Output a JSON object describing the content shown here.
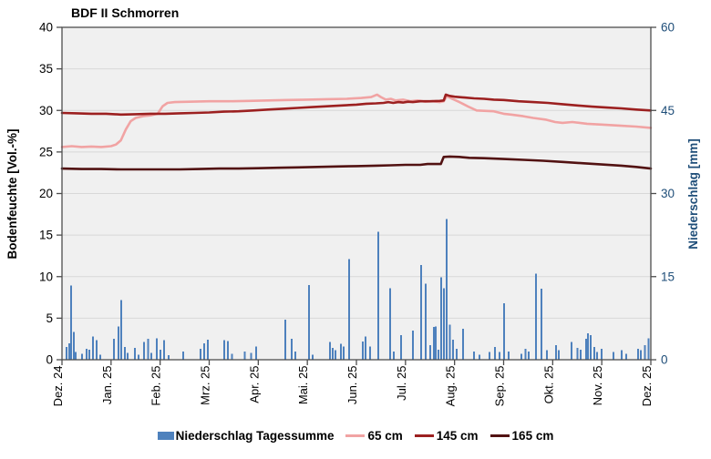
{
  "title": "BDF II Schmorren",
  "chart_data": {
    "type": "bar+line combo",
    "title": "BDF II Schmorren",
    "background": "#f0f0f0",
    "gridline_color": "#d8d8d8",
    "frame_color": "#4d4d4d",
    "legend_position": "bottom",
    "y_left": {
      "label": "Bodenfeuchte [Vol.-%]",
      "min": 0,
      "max": 40,
      "ticks": [
        0,
        5,
        10,
        15,
        20,
        25,
        30,
        35,
        40
      ],
      "color": "#000000"
    },
    "y_right": {
      "label": "Niederschlag [mm]",
      "min": 0,
      "max": 60,
      "ticks": [
        0,
        15,
        30,
        45,
        60
      ],
      "color": "#1f4e79"
    },
    "x": {
      "unit": "months from Dez. 24",
      "min": 0,
      "max": 12,
      "tick_labels": [
        "Dez. 24",
        "Jan. 25",
        "Feb. 25",
        "Mrz. 25",
        "Apr. 25",
        "Mai. 25",
        "Jun. 25",
        "Jul. 25",
        "Aug. 25",
        "Sep. 25",
        "Okt. 25",
        "Nov. 25",
        "Dez. 25"
      ]
    },
    "series": [
      {
        "name": "Niederschlag Tagessumme",
        "type": "bar",
        "axis": "right",
        "color": "#4e81bd",
        "points": [
          [
            0.09,
            2.3
          ],
          [
            0.15,
            3.0
          ],
          [
            0.19,
            13.4
          ],
          [
            0.24,
            5.0
          ],
          [
            0.28,
            1.4
          ],
          [
            0.41,
            1.1
          ],
          [
            0.5,
            2.0
          ],
          [
            0.56,
            1.8
          ],
          [
            0.63,
            4.2
          ],
          [
            0.71,
            3.5
          ],
          [
            0.78,
            0.9
          ],
          [
            1.06,
            3.8
          ],
          [
            1.15,
            6.0
          ],
          [
            1.21,
            10.8
          ],
          [
            1.28,
            2.3
          ],
          [
            1.34,
            1.2
          ],
          [
            1.49,
            2.1
          ],
          [
            1.56,
            0.9
          ],
          [
            1.67,
            3.2
          ],
          [
            1.76,
            3.8
          ],
          [
            1.82,
            1.2
          ],
          [
            1.93,
            3.9
          ],
          [
            2.01,
            1.8
          ],
          [
            2.08,
            3.5
          ],
          [
            2.17,
            0.8
          ],
          [
            2.47,
            1.5
          ],
          [
            2.82,
            2.0
          ],
          [
            2.9,
            3.0
          ],
          [
            2.97,
            3.6
          ],
          [
            3.31,
            3.5
          ],
          [
            3.38,
            3.4
          ],
          [
            3.46,
            1.1
          ],
          [
            3.72,
            1.5
          ],
          [
            3.85,
            1.2
          ],
          [
            3.96,
            2.4
          ],
          [
            4.55,
            7.2
          ],
          [
            4.68,
            3.8
          ],
          [
            4.76,
            1.5
          ],
          [
            5.03,
            13.5
          ],
          [
            5.11,
            0.9
          ],
          [
            5.46,
            3.2
          ],
          [
            5.52,
            2.1
          ],
          [
            5.57,
            1.7
          ],
          [
            5.68,
            2.9
          ],
          [
            5.74,
            2.4
          ],
          [
            5.85,
            18.2
          ],
          [
            6.13,
            3.3
          ],
          [
            6.19,
            4.2
          ],
          [
            6.28,
            2.4
          ],
          [
            6.45,
            23.1
          ],
          [
            6.69,
            12.9
          ],
          [
            6.76,
            1.5
          ],
          [
            6.91,
            4.4
          ],
          [
            7.15,
            5.3
          ],
          [
            7.32,
            17.1
          ],
          [
            7.41,
            13.7
          ],
          [
            7.5,
            2.6
          ],
          [
            7.58,
            5.9
          ],
          [
            7.62,
            6.0
          ],
          [
            7.67,
            1.8
          ],
          [
            7.73,
            14.9
          ],
          [
            7.78,
            12.9
          ],
          [
            7.84,
            25.4
          ],
          [
            7.9,
            6.3
          ],
          [
            7.97,
            3.6
          ],
          [
            8.04,
            2.0
          ],
          [
            8.17,
            5.6
          ],
          [
            8.4,
            1.5
          ],
          [
            8.51,
            0.9
          ],
          [
            8.71,
            1.4
          ],
          [
            8.82,
            2.3
          ],
          [
            8.92,
            1.4
          ],
          [
            9.01,
            10.2
          ],
          [
            9.1,
            1.5
          ],
          [
            9.36,
            1.1
          ],
          [
            9.45,
            2.0
          ],
          [
            9.51,
            1.5
          ],
          [
            9.66,
            15.5
          ],
          [
            9.77,
            12.8
          ],
          [
            9.88,
            1.7
          ],
          [
            10.07,
            2.6
          ],
          [
            10.12,
            1.7
          ],
          [
            10.38,
            3.2
          ],
          [
            10.5,
            2.1
          ],
          [
            10.57,
            1.8
          ],
          [
            10.68,
            3.8
          ],
          [
            10.72,
            4.8
          ],
          [
            10.77,
            4.4
          ],
          [
            10.85,
            2.3
          ],
          [
            10.9,
            1.4
          ],
          [
            11.0,
            2.0
          ],
          [
            11.24,
            1.4
          ],
          [
            11.41,
            1.7
          ],
          [
            11.5,
            1.1
          ],
          [
            11.74,
            2.0
          ],
          [
            11.8,
            1.7
          ],
          [
            11.88,
            2.6
          ],
          [
            11.95,
            3.9
          ]
        ]
      },
      {
        "name": "65 cm",
        "type": "line",
        "axis": "left",
        "color": "#f1a3a3",
        "points": [
          [
            0,
            25.6
          ],
          [
            0.2,
            25.7
          ],
          [
            0.4,
            25.6
          ],
          [
            0.6,
            25.65
          ],
          [
            0.8,
            25.6
          ],
          [
            1.0,
            25.7
          ],
          [
            1.1,
            25.9
          ],
          [
            1.2,
            26.4
          ],
          [
            1.3,
            27.7
          ],
          [
            1.4,
            28.7
          ],
          [
            1.5,
            29.1
          ],
          [
            1.65,
            29.3
          ],
          [
            1.8,
            29.4
          ],
          [
            1.95,
            29.6
          ],
          [
            2.05,
            30.5
          ],
          [
            2.15,
            30.9
          ],
          [
            2.3,
            31.0
          ],
          [
            2.6,
            31.05
          ],
          [
            3.0,
            31.1
          ],
          [
            3.4,
            31.1
          ],
          [
            3.8,
            31.15
          ],
          [
            4.2,
            31.2
          ],
          [
            4.6,
            31.25
          ],
          [
            5.0,
            31.3
          ],
          [
            5.4,
            31.35
          ],
          [
            5.8,
            31.4
          ],
          [
            6.1,
            31.5
          ],
          [
            6.3,
            31.6
          ],
          [
            6.42,
            31.9
          ],
          [
            6.5,
            31.6
          ],
          [
            6.6,
            31.3
          ],
          [
            6.7,
            31.4
          ],
          [
            6.8,
            31.2
          ],
          [
            6.95,
            31.3
          ],
          [
            7.1,
            31.1
          ],
          [
            7.25,
            31.2
          ],
          [
            7.4,
            31.05
          ],
          [
            7.55,
            31.1
          ],
          [
            7.7,
            31.0
          ],
          [
            7.78,
            31.1
          ],
          [
            7.84,
            31.7
          ],
          [
            7.95,
            31.4
          ],
          [
            8.1,
            31.0
          ],
          [
            8.3,
            30.4
          ],
          [
            8.45,
            30.0
          ],
          [
            8.6,
            29.95
          ],
          [
            8.8,
            29.9
          ],
          [
            9.0,
            29.6
          ],
          [
            9.15,
            29.5
          ],
          [
            9.4,
            29.3
          ],
          [
            9.6,
            29.1
          ],
          [
            9.85,
            28.9
          ],
          [
            10.05,
            28.6
          ],
          [
            10.2,
            28.5
          ],
          [
            10.4,
            28.6
          ],
          [
            10.7,
            28.4
          ],
          [
            11.0,
            28.3
          ],
          [
            11.4,
            28.15
          ],
          [
            11.7,
            28.05
          ],
          [
            12.0,
            27.9
          ]
        ]
      },
      {
        "name": "145 cm",
        "type": "line",
        "axis": "left",
        "color": "#9c2020",
        "points": [
          [
            0,
            29.7
          ],
          [
            0.3,
            29.65
          ],
          [
            0.6,
            29.6
          ],
          [
            0.9,
            29.6
          ],
          [
            1.2,
            29.5
          ],
          [
            1.5,
            29.55
          ],
          [
            1.8,
            29.6
          ],
          [
            2.1,
            29.6
          ],
          [
            2.4,
            29.65
          ],
          [
            2.7,
            29.7
          ],
          [
            3.0,
            29.75
          ],
          [
            3.3,
            29.85
          ],
          [
            3.6,
            29.9
          ],
          [
            3.9,
            30.0
          ],
          [
            4.2,
            30.1
          ],
          [
            4.5,
            30.2
          ],
          [
            4.8,
            30.3
          ],
          [
            5.1,
            30.4
          ],
          [
            5.4,
            30.5
          ],
          [
            5.7,
            30.6
          ],
          [
            6.0,
            30.7
          ],
          [
            6.2,
            30.8
          ],
          [
            6.4,
            30.85
          ],
          [
            6.55,
            30.9
          ],
          [
            6.65,
            31.0
          ],
          [
            6.75,
            30.9
          ],
          [
            6.85,
            31.0
          ],
          [
            6.95,
            30.95
          ],
          [
            7.05,
            31.05
          ],
          [
            7.15,
            31.0
          ],
          [
            7.3,
            31.1
          ],
          [
            7.5,
            31.1
          ],
          [
            7.7,
            31.15
          ],
          [
            7.78,
            31.2
          ],
          [
            7.82,
            31.9
          ],
          [
            7.9,
            31.75
          ],
          [
            8.0,
            31.65
          ],
          [
            8.2,
            31.55
          ],
          [
            8.4,
            31.45
          ],
          [
            8.6,
            31.4
          ],
          [
            8.8,
            31.3
          ],
          [
            9.0,
            31.25
          ],
          [
            9.3,
            31.1
          ],
          [
            9.6,
            31.0
          ],
          [
            9.9,
            30.9
          ],
          [
            10.2,
            30.75
          ],
          [
            10.5,
            30.6
          ],
          [
            10.8,
            30.45
          ],
          [
            11.1,
            30.35
          ],
          [
            11.4,
            30.25
          ],
          [
            11.7,
            30.1
          ],
          [
            12.0,
            30.0
          ]
        ]
      },
      {
        "name": "165 cm",
        "type": "line",
        "axis": "left",
        "color": "#521212",
        "points": [
          [
            0,
            23.0
          ],
          [
            0.4,
            22.95
          ],
          [
            0.8,
            22.95
          ],
          [
            1.2,
            22.9
          ],
          [
            1.6,
            22.9
          ],
          [
            2.0,
            22.9
          ],
          [
            2.4,
            22.9
          ],
          [
            2.8,
            22.95
          ],
          [
            3.2,
            23.0
          ],
          [
            3.6,
            23.0
          ],
          [
            4.0,
            23.05
          ],
          [
            4.4,
            23.1
          ],
          [
            4.8,
            23.15
          ],
          [
            5.2,
            23.2
          ],
          [
            5.6,
            23.25
          ],
          [
            6.0,
            23.3
          ],
          [
            6.4,
            23.35
          ],
          [
            6.7,
            23.4
          ],
          [
            7.0,
            23.45
          ],
          [
            7.3,
            23.45
          ],
          [
            7.45,
            23.55
          ],
          [
            7.6,
            23.55
          ],
          [
            7.72,
            23.55
          ],
          [
            7.78,
            24.4
          ],
          [
            7.9,
            24.45
          ],
          [
            8.1,
            24.4
          ],
          [
            8.3,
            24.3
          ],
          [
            8.6,
            24.25
          ],
          [
            9.0,
            24.15
          ],
          [
            9.4,
            24.05
          ],
          [
            9.8,
            23.95
          ],
          [
            10.2,
            23.8
          ],
          [
            10.6,
            23.65
          ],
          [
            11.0,
            23.5
          ],
          [
            11.4,
            23.35
          ],
          [
            11.7,
            23.2
          ],
          [
            12.0,
            23.0
          ]
        ]
      }
    ]
  }
}
